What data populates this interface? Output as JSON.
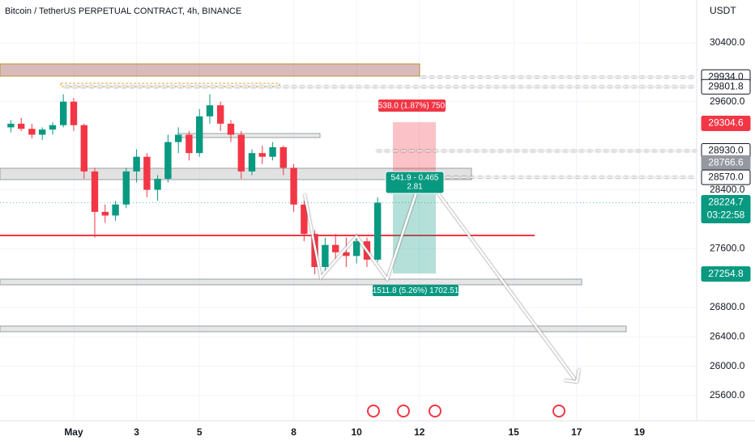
{
  "chart_data": {
    "type": "candlestick",
    "title": "Bitcoin / TetherUS PERPETUAL CONTRACT, 4h, BINANCE",
    "currency": "USDT",
    "x": [
      -1,
      -0.67,
      -0.33,
      0,
      0.33,
      0.67,
      1,
      1.33,
      1.67,
      2,
      2.33,
      2.67,
      3,
      3.33,
      3.67,
      4,
      4.33,
      4.67,
      5,
      5.33,
      5.67,
      6,
      6.33,
      6.67,
      7,
      7.33,
      7.67,
      8,
      8.33,
      8.67,
      9,
      9.33,
      9.67,
      10,
      10.33,
      10.67
    ],
    "open": [
      29250,
      29300,
      29230,
      29150,
      29220,
      29280,
      29600,
      29280,
      28650,
      28100,
      28050,
      28200,
      28650,
      28850,
      28400,
      28550,
      29050,
      29150,
      28900,
      29400,
      29550,
      29300,
      29150,
      28650,
      28900,
      28850,
      28980,
      28700,
      28200,
      27800,
      27350,
      27650,
      27550,
      27500,
      27700,
      27450
    ],
    "high": [
      29350,
      29380,
      29300,
      29250,
      29320,
      29700,
      29650,
      29300,
      28700,
      28200,
      28250,
      28700,
      28950,
      28900,
      28600,
      29150,
      29250,
      29200,
      29500,
      29700,
      29600,
      29350,
      29200,
      28950,
      29000,
      29050,
      29000,
      28750,
      28250,
      27850,
      27750,
      27800,
      27750,
      27800,
      27750,
      28300
    ],
    "low": [
      29180,
      29200,
      29100,
      29080,
      29150,
      29250,
      29200,
      28550,
      27750,
      27950,
      27980,
      28150,
      28500,
      28300,
      28250,
      28500,
      28900,
      28800,
      28850,
      29300,
      29200,
      29050,
      28550,
      28600,
      28750,
      28800,
      28600,
      28100,
      27700,
      27250,
      27300,
      27450,
      27350,
      27400,
      27350,
      27420
    ],
    "close": [
      29300,
      29230,
      29150,
      29220,
      29280,
      29600,
      29280,
      28650,
      28100,
      28050,
      28200,
      28650,
      28850,
      28400,
      28550,
      29050,
      29150,
      28900,
      29400,
      29550,
      29300,
      29150,
      28650,
      28900,
      28850,
      28980,
      28700,
      28200,
      27800,
      27350,
      27650,
      27550,
      27500,
      27700,
      27450,
      28225
    ],
    "up_color": "#089981",
    "down_color": "#f23645",
    "xlim": [
      -1.345,
      20.82
    ],
    "xticks": [
      {
        "value": 1,
        "label": "May"
      },
      3,
      5,
      8,
      10,
      12,
      15,
      17,
      19
    ],
    "ylim": [
      25258,
      30983
    ],
    "yticks": [
      {
        "value": 30400,
        "label": "30400.0"
      },
      {
        "value": 29600,
        "label": "29600.0"
      },
      {
        "value": 28400,
        "label": "28400.0"
      },
      {
        "value": 27600,
        "label": "27600.0"
      },
      {
        "value": 26800,
        "label": "26800.0"
      },
      {
        "value": 26400,
        "label": "26400.0"
      },
      {
        "value": 26000,
        "label": "26000.0"
      },
      {
        "value": 25600,
        "label": "25600.0"
      }
    ],
    "grid": true,
    "price_tags": [
      {
        "value": 29934,
        "label": "29934.0",
        "color": "#ffffff",
        "dashed": true
      },
      {
        "value": 29801.8,
        "label": "29801.8",
        "color": "#ffffff",
        "dashed": true
      },
      {
        "value": 29304.6,
        "label": "29304.6",
        "color": "#f23645"
      },
      {
        "value": 28930,
        "label": "28930.0",
        "color": "#ffffff",
        "dashed": true
      },
      {
        "value": 28766.6,
        "label": "28766.6",
        "color": "#9598a1"
      },
      {
        "value": 28570,
        "label": "28570.0",
        "color": "#ffffff",
        "dashed": true
      },
      {
        "value": 28224.7,
        "label": "28224.7",
        "color": "#089981"
      },
      {
        "value": 27254.8,
        "label": "27254.8",
        "color": "#089981"
      }
    ],
    "countdown": "03:22:58",
    "annotations": [
      "538.0 (1.87%) 750",
      "541.9 - 0.465",
      "2.81",
      "1511.8 (5.26%) 1702.51"
    ]
  }
}
